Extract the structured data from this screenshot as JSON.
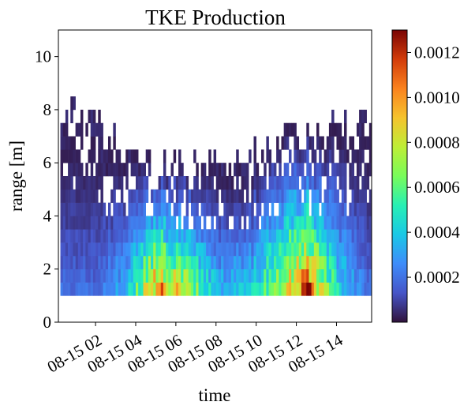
{
  "chart_data": {
    "type": "heatmap",
    "title": "TKE Production",
    "xlabel": "time",
    "ylabel": "range [m]",
    "x_range": [
      "08-15 00:15",
      "08-15 15:45"
    ],
    "x_ticks": [
      "08-15 02",
      "08-15 04",
      "08-15 06",
      "08-15 08",
      "08-15 10",
      "08-15 12",
      "08-15 14"
    ],
    "x_tick_hours": [
      2,
      4,
      6,
      8,
      10,
      12,
      14
    ],
    "ylim": [
      0,
      11
    ],
    "y_ticks": [
      0,
      2,
      4,
      6,
      8,
      10
    ],
    "y_tick_labels": [
      "0",
      "2",
      "4",
      "6",
      "8",
      "10"
    ],
    "colormap": "turbo",
    "colorbar": {
      "range": [
        0.0,
        0.0013
      ],
      "ticks": [
        0.0002,
        0.0004,
        0.0006,
        0.0008,
        0.001,
        0.0012
      ],
      "tick_labels": [
        "0.0002",
        "0.0004",
        "0.0006",
        "0.0008",
        "0.0010",
        "0.0012"
      ]
    },
    "value_profile": {
      "range_bins_m": [
        1.0,
        1.5,
        2.0,
        2.5,
        3.0,
        3.5,
        4.0,
        4.5,
        5.0,
        5.5,
        6.0,
        6.5,
        7.0,
        7.5,
        8.0,
        8.5
      ],
      "max_range_by_hour": [
        {
          "hour": 0.5,
          "max_range_m": 8.4
        },
        {
          "hour": 2.0,
          "max_range_m": 7.6
        },
        {
          "hour": 3.5,
          "max_range_m": 6.8
        },
        {
          "hour": 5.0,
          "max_range_m": 6.2
        },
        {
          "hour": 6.5,
          "max_range_m": 6.4
        },
        {
          "hour": 8.0,
          "max_range_m": 6.3
        },
        {
          "hour": 9.5,
          "max_range_m": 6.5
        },
        {
          "hour": 11.0,
          "max_range_m": 7.5
        },
        {
          "hour": 12.5,
          "max_range_m": 7.3
        },
        {
          "hour": 14.0,
          "max_range_m": 7.6
        },
        {
          "hour": 15.5,
          "max_range_m": 8.4
        }
      ],
      "peak_value_by_hour": [
        {
          "hour": 0.5,
          "value": 0.0002
        },
        {
          "hour": 2.0,
          "value": 0.0002
        },
        {
          "hour": 3.5,
          "value": 0.0004
        },
        {
          "hour": 5.0,
          "value": 0.0011
        },
        {
          "hour": 6.5,
          "value": 0.0008
        },
        {
          "hour": 8.0,
          "value": 0.0004
        },
        {
          "hour": 9.5,
          "value": 0.0004
        },
        {
          "hour": 11.0,
          "value": 0.0008
        },
        {
          "hour": 12.5,
          "value": 0.0012
        },
        {
          "hour": 14.0,
          "value": 0.0005
        },
        {
          "hour": 15.5,
          "value": 0.0002
        }
      ]
    }
  }
}
